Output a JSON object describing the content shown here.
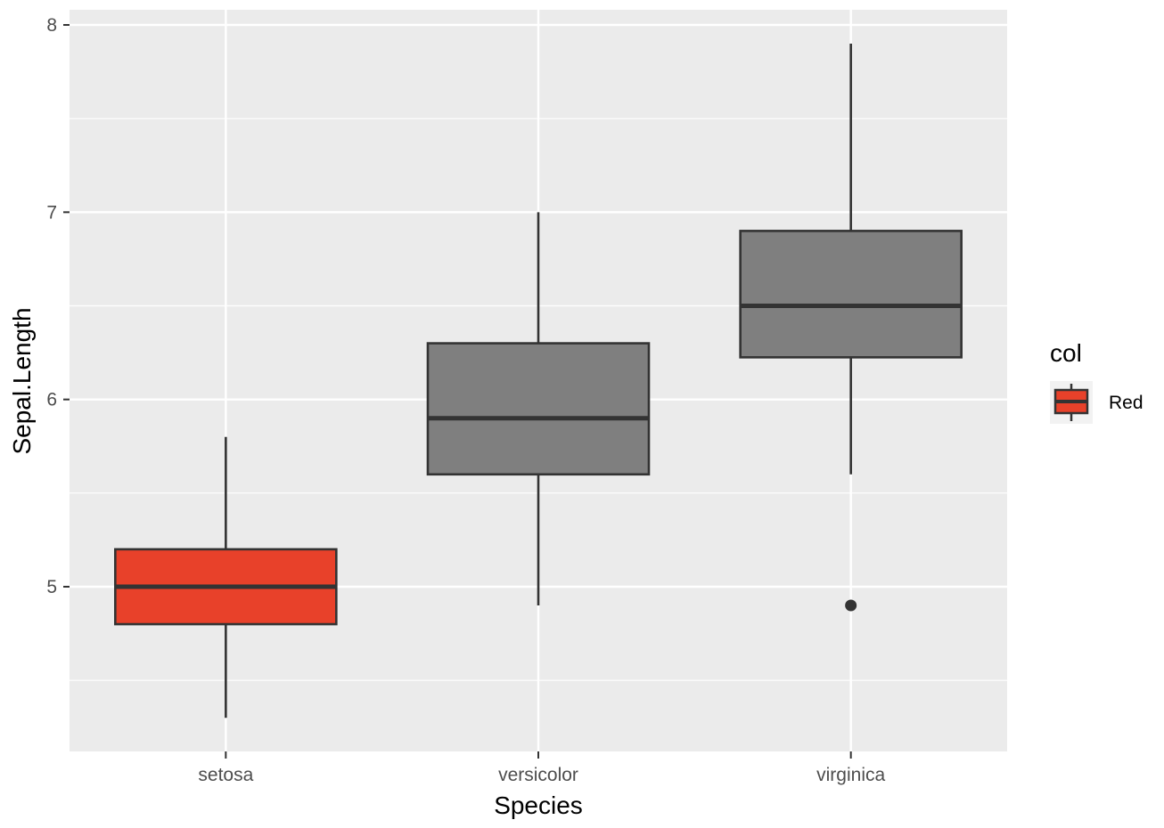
{
  "chart_data": {
    "type": "boxplot",
    "xlabel": "Species",
    "ylabel": "Sepal.Length",
    "categories": [
      "setosa",
      "versicolor",
      "virginica"
    ],
    "ylim": [
      4.2,
      8.1
    ],
    "yticks": [
      5,
      6,
      7,
      8
    ],
    "yminor": [
      4.5,
      5.5,
      6.5,
      7.5
    ],
    "grid": true,
    "background": "#ebebeb",
    "boxes": [
      {
        "category": "setosa",
        "min": 4.3,
        "q1": 4.8,
        "median": 5.0,
        "q3": 5.2,
        "max": 5.8,
        "outliers": [],
        "fill": "#e8412a",
        "group": "Red"
      },
      {
        "category": "versicolor",
        "min": 4.9,
        "q1": 5.6,
        "median": 5.9,
        "q3": 6.3,
        "max": 7.0,
        "outliers": [],
        "fill": "#7f7f7f",
        "group": null
      },
      {
        "category": "virginica",
        "min": 5.6,
        "q1": 6.225,
        "median": 6.5,
        "q3": 6.9,
        "max": 7.9,
        "outliers": [
          4.9
        ],
        "fill": "#7f7f7f",
        "group": null
      }
    ],
    "legend": {
      "title": "col",
      "position": "right",
      "entries": [
        {
          "label": "Red",
          "fill": "#e8412a"
        }
      ]
    }
  }
}
